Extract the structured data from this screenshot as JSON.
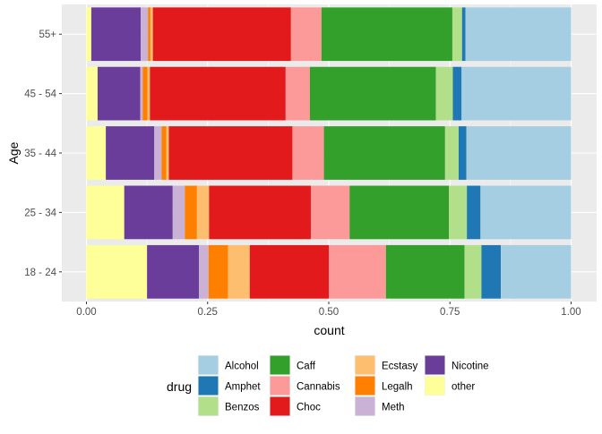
{
  "chart_data": {
    "type": "bar",
    "orientation": "horizontal",
    "stacked": "fill",
    "xlabel": "count",
    "ylabel": "Age",
    "xlim": [
      0,
      1
    ],
    "x_ticks": [
      "0.00",
      "0.25",
      "0.50",
      "0.75",
      "1.00"
    ],
    "categories": [
      "18 - 24",
      "25 - 34",
      "35 - 44",
      "45 - 54",
      "55+"
    ],
    "grid": true,
    "legend_title": "drug",
    "legend_position": "bottom",
    "stack_order": [
      "other",
      "Nicotine",
      "Meth",
      "Legalh",
      "Ecstasy",
      "Choc",
      "Cannabis",
      "Caff",
      "Benzos",
      "Amphet",
      "Alcohol"
    ],
    "legend_order": [
      "Alcohol",
      "Amphet",
      "Benzos",
      "Caff",
      "Cannabis",
      "Choc",
      "Ecstasy",
      "Legalh",
      "Meth",
      "Nicotine",
      "other"
    ],
    "colors": {
      "Alcohol": "#A6CEE3",
      "Amphet": "#1F78B4",
      "Benzos": "#B2DF8A",
      "Caff": "#33A02C",
      "Cannabis": "#FB9A99",
      "Choc": "#E31A1C",
      "Ecstasy": "#FDBF6F",
      "Legalh": "#FF7F00",
      "Meth": "#CAB2D6",
      "Nicotine": "#6A3D9A",
      "other": "#FFFF99"
    },
    "series": [
      {
        "name": "other",
        "values": [
          0.125,
          0.078,
          0.04,
          0.023,
          0.01
        ]
      },
      {
        "name": "Nicotine",
        "values": [
          0.107,
          0.1,
          0.1,
          0.088,
          0.102
        ]
      },
      {
        "name": "Meth",
        "values": [
          0.02,
          0.025,
          0.015,
          0.005,
          0.015
        ]
      },
      {
        "name": "Legalh",
        "values": [
          0.04,
          0.025,
          0.01,
          0.01,
          0.005
        ]
      },
      {
        "name": "Ecstasy",
        "values": [
          0.045,
          0.025,
          0.005,
          0.005,
          0.005
        ]
      },
      {
        "name": "Choc",
        "values": [
          0.163,
          0.21,
          0.255,
          0.28,
          0.285
        ]
      },
      {
        "name": "Cannabis",
        "values": [
          0.118,
          0.08,
          0.065,
          0.05,
          0.063
        ]
      },
      {
        "name": "Caff",
        "values": [
          0.162,
          0.205,
          0.25,
          0.26,
          0.27
        ]
      },
      {
        "name": "Benzos",
        "values": [
          0.035,
          0.037,
          0.028,
          0.035,
          0.02
        ]
      },
      {
        "name": "Amphet",
        "values": [
          0.04,
          0.028,
          0.016,
          0.018,
          0.007
        ]
      },
      {
        "name": "Alcohol",
        "values": [
          0.145,
          0.187,
          0.216,
          0.226,
          0.218
        ]
      }
    ]
  }
}
